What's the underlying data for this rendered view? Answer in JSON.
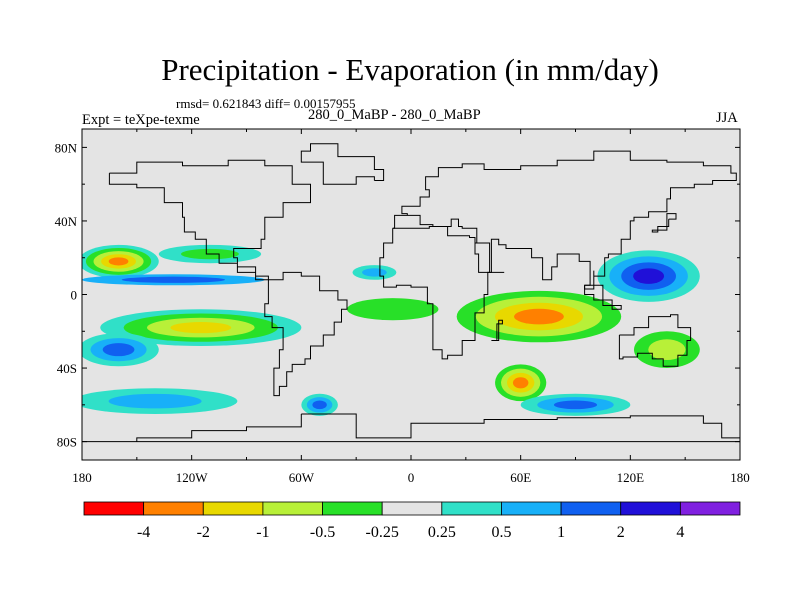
{
  "header": {
    "title": "Precipitation - Evaporation (in mm/day)",
    "stats": "rmsd= 0.621843 diff= 0.00157955",
    "experiment": "Expt = teXpe-texme",
    "runs": "280_0_MaBP - 280_0_MaBP",
    "season": "JJA"
  },
  "chart_data": {
    "type": "heatmap",
    "title": "Precipitation - Evaporation (in mm/day)",
    "projection": "cylindrical-equidistant",
    "xlim": [
      -180,
      180
    ],
    "ylim": [
      -90,
      90
    ],
    "x_ticks": [
      {
        "value": -180,
        "label": "180"
      },
      {
        "value": -120,
        "label": "120W"
      },
      {
        "value": -60,
        "label": "60W"
      },
      {
        "value": 0,
        "label": "0"
      },
      {
        "value": 60,
        "label": "60E"
      },
      {
        "value": 120,
        "label": "120E"
      },
      {
        "value": 180,
        "label": "180"
      }
    ],
    "y_ticks": [
      {
        "value": 80,
        "label": "80N"
      },
      {
        "value": 40,
        "label": "40N"
      },
      {
        "value": 0,
        "label": "0"
      },
      {
        "value": -40,
        "label": "40S"
      },
      {
        "value": -80,
        "label": "80S"
      }
    ],
    "background_color": "#e4e4e4",
    "contour_levels": [
      "-4",
      "-2",
      "-1",
      "-0.5",
      "-0.25",
      "0.25",
      "0.5",
      "1",
      "2",
      "4"
    ],
    "colorbar_colors": [
      "#ff0000",
      "#ff8000",
      "#e8d800",
      "#b8f038",
      "#28e028",
      "#e4e4e4",
      "#30e0c8",
      "#18b0f8",
      "#1060f0",
      "#2010d8",
      "#8020e0"
    ],
    "features": [
      {
        "name": "N Pacific subtropical dry band",
        "lon": -160,
        "lat": 18,
        "rx": 22,
        "ry": 9,
        "level_colors": [
          "#30e0c8",
          "#28e028",
          "#b8f038",
          "#e8d800",
          "#ff8000"
        ]
      },
      {
        "name": "N Pacific tail",
        "lon": -110,
        "lat": 22,
        "rx": 28,
        "ry": 5,
        "level_colors": [
          "#30e0c8",
          "#28e028"
        ]
      },
      {
        "name": "Equatorial Pacific wet",
        "lon": -130,
        "lat": 8,
        "rx": 50,
        "ry": 3,
        "level_colors": [
          "#18b0f8",
          "#1060f0"
        ]
      },
      {
        "name": "S Pacific dry band",
        "lon": -115,
        "lat": -18,
        "rx": 55,
        "ry": 10,
        "level_colors": [
          "#30e0c8",
          "#28e028",
          "#b8f038",
          "#e8d800"
        ]
      },
      {
        "name": "S Pacific SPCZ wet",
        "lon": -160,
        "lat": -30,
        "rx": 22,
        "ry": 9,
        "level_colors": [
          "#30e0c8",
          "#18b0f8",
          "#1060f0"
        ]
      },
      {
        "name": "S Pacific storm track",
        "lon": -140,
        "lat": -58,
        "rx": 45,
        "ry": 7,
        "level_colors": [
          "#30e0c8",
          "#18b0f8"
        ]
      },
      {
        "name": "Indian Ocean dry",
        "lon": 70,
        "lat": -12,
        "rx": 45,
        "ry": 14,
        "level_colors": [
          "#28e028",
          "#b8f038",
          "#e8d800",
          "#ff8000"
        ]
      },
      {
        "name": "South African / S Indian dry",
        "lon": 60,
        "lat": -48,
        "rx": 14,
        "ry": 10,
        "level_colors": [
          "#28e028",
          "#b8f038",
          "#e8d800",
          "#ff8000"
        ]
      },
      {
        "name": "Asian monsoon wet",
        "lon": 130,
        "lat": 10,
        "rx": 28,
        "ry": 14,
        "level_colors": [
          "#30e0c8",
          "#18b0f8",
          "#1060f0",
          "#2010d8"
        ]
      },
      {
        "name": "Indian Ocean storm track wet",
        "lon": 90,
        "lat": -60,
        "rx": 30,
        "ry": 6,
        "level_colors": [
          "#30e0c8",
          "#18b0f8",
          "#1060f0"
        ]
      },
      {
        "name": "Australian dry",
        "lon": 140,
        "lat": -30,
        "rx": 18,
        "ry": 10,
        "level_colors": [
          "#28e028",
          "#b8f038"
        ]
      },
      {
        "name": "South American wet",
        "lon": -50,
        "lat": -60,
        "rx": 10,
        "ry": 6,
        "level_colors": [
          "#30e0c8",
          "#18b0f8",
          "#1060f0"
        ]
      },
      {
        "name": "Atlantic wet",
        "lon": -20,
        "lat": 12,
        "rx": 12,
        "ry": 4,
        "level_colors": [
          "#30e0c8",
          "#18b0f8"
        ]
      },
      {
        "name": "Atlantic tropical dry",
        "lon": -10,
        "lat": -8,
        "rx": 25,
        "ry": 6,
        "level_colors": [
          "#28e028"
        ]
      }
    ]
  }
}
